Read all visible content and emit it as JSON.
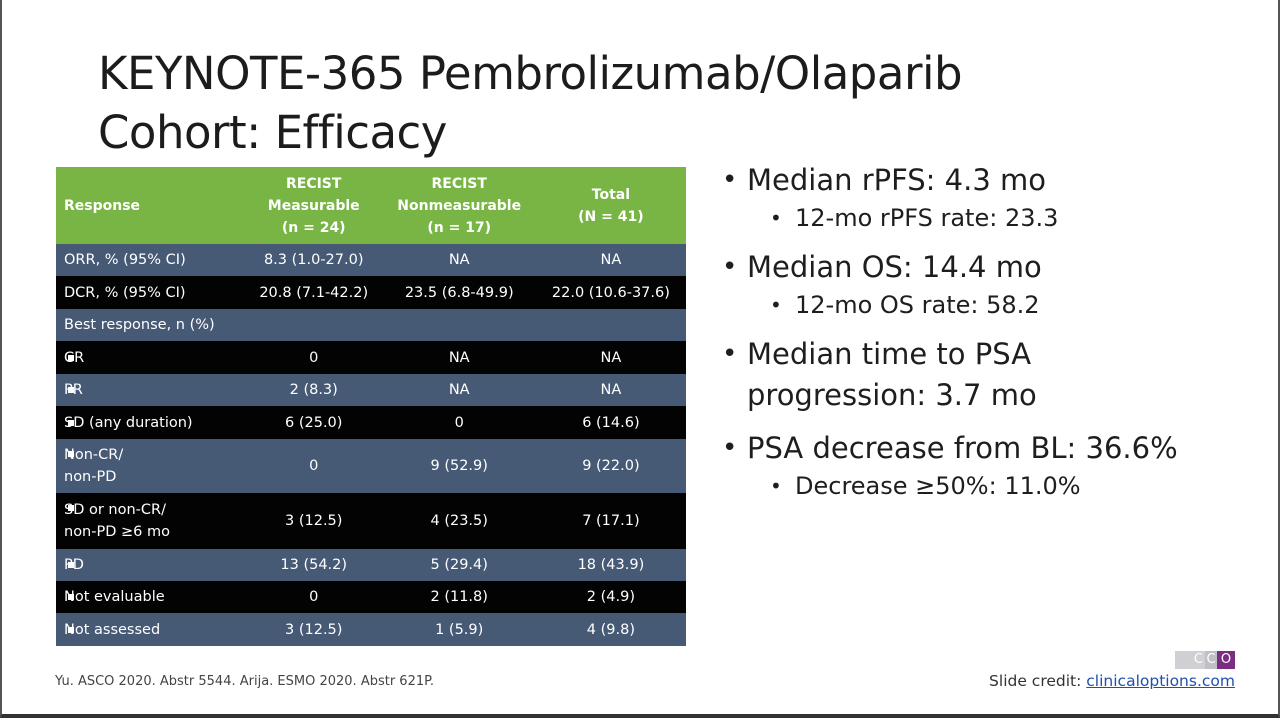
{
  "title": {
    "line1": "KEYNOTE-365 Pembrolizumab/Olaparib",
    "line2": "Cohort: Efficacy"
  },
  "table": {
    "headers": {
      "col0": "Response",
      "col1_l1": "RECIST",
      "col1_l2": "Measurable",
      "col1_l3": "(n = 24)",
      "col2_l1": "RECIST",
      "col2_l2": "Nonmeasurable",
      "col2_l3": "(n = 17)",
      "col3_l1": "Total",
      "col3_l2": "(N = 41)"
    },
    "rows": [
      {
        "label": "ORR, % (95% CI)",
        "v1": "8.3 (1.0-27.0)",
        "v2": "NA",
        "v3": "NA"
      },
      {
        "label": "DCR, % (95% CI)",
        "v1": "20.8 (7.1-42.2)",
        "v2": "23.5 (6.8-49.9)",
        "v3": "22.0 (10.6-37.6)"
      },
      {
        "label": "Best response, n (%)"
      },
      {
        "label": "CR",
        "v1": "0",
        "v2": "NA",
        "v3": "NA"
      },
      {
        "label": "PR",
        "v1": "2 (8.3)",
        "v2": "NA",
        "v3": "NA"
      },
      {
        "label": "SD (any duration)",
        "v1": "6 (25.0)",
        "v2": "0",
        "v3": "6 (14.6)"
      },
      {
        "label_l1": "Non-CR/",
        "label_l2": "non-PD",
        "v1": "0",
        "v2": "9 (52.9)",
        "v3": "9 (22.0)"
      },
      {
        "label_l1": "SD or non-CR/",
        "label_l2": "non-PD ≥6 mo",
        "v1": "3 (12.5)",
        "v2": "4 (23.5)",
        "v3": "7 (17.1)"
      },
      {
        "label": "PD",
        "v1": "13 (54.2)",
        "v2": "5 (29.4)",
        "v3": "18 (43.9)"
      },
      {
        "label": "Not evaluable",
        "v1": "0",
        "v2": "2 (11.8)",
        "v3": "2 (4.9)"
      },
      {
        "label": "Not assessed",
        "v1": "3 (12.5)",
        "v2": "1 (5.9)",
        "v3": "4 (9.8)"
      }
    ]
  },
  "bullets": {
    "b1": "Median rPFS: 4.3 mo",
    "b1_sub": "12-mo rPFS rate: 23.3",
    "b2": "Median OS: 14.4 mo",
    "b2_sub": "12-mo OS rate: 58.2",
    "b3_l1": "Median time to PSA",
    "b3_l2": "progression: 3.7 mo",
    "b4": "PSA decrease from BL: 36.6%",
    "b4_sub": "Decrease ≥50%: 11.0%",
    "dot": "•"
  },
  "footer": {
    "reference": "Yu. ASCO 2020. Abstr 5544. Arija. ESMO 2020. Abstr 621P.",
    "credit_label": "Slide credit:",
    "credit_link": "clinicaloptions.com"
  },
  "logo": {
    "c1": "C",
    "c2": "C",
    "c3": "O"
  },
  "colors": {
    "header_green": "#79b545",
    "row_blue": "#465975",
    "row_black": "#030303",
    "logo_purple": "#7b2c83"
  }
}
